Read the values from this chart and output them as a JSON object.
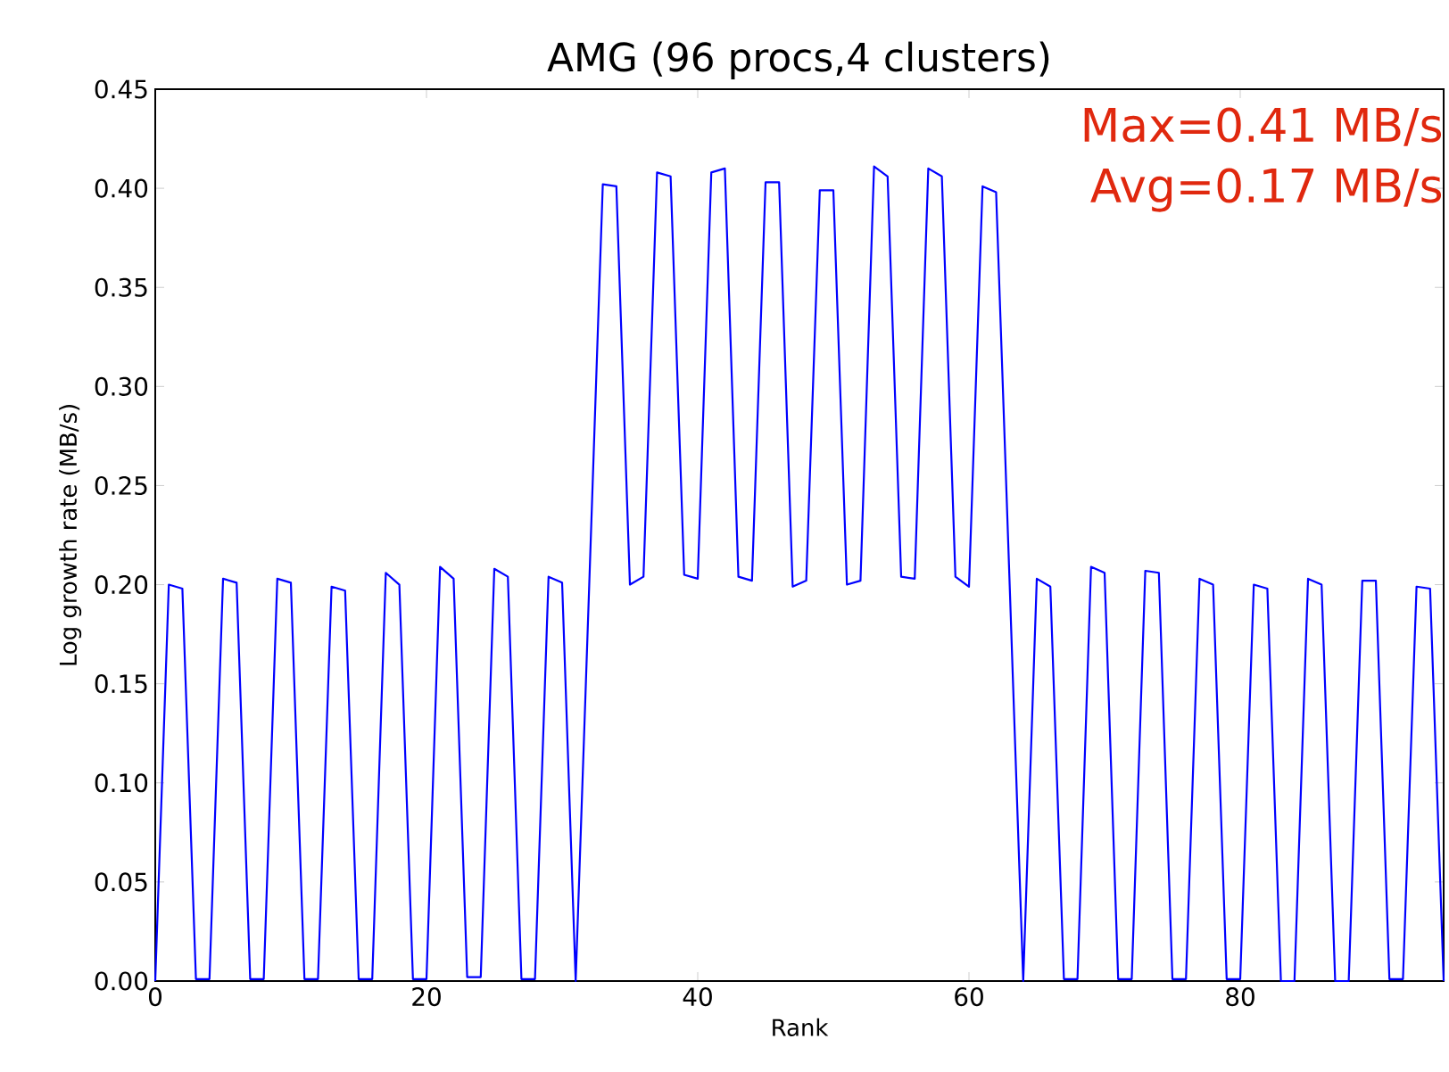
{
  "chart_data": {
    "type": "line",
    "title": "AMG (96 procs,4 clusters)",
    "xlabel": "Rank",
    "ylabel": "Log growth rate (MB/s)",
    "annotations": [
      "Max=0.41 MB/s",
      "Avg=0.17 MB/s"
    ],
    "x": [
      0,
      1,
      2,
      3,
      4,
      5,
      6,
      7,
      8,
      9,
      10,
      11,
      12,
      13,
      14,
      15,
      16,
      17,
      18,
      19,
      20,
      21,
      22,
      23,
      24,
      25,
      26,
      27,
      28,
      29,
      30,
      31,
      32,
      33,
      34,
      35,
      36,
      37,
      38,
      39,
      40,
      41,
      42,
      43,
      44,
      45,
      46,
      47,
      48,
      49,
      50,
      51,
      52,
      53,
      54,
      55,
      56,
      57,
      58,
      59,
      60,
      61,
      62,
      63,
      64,
      65,
      66,
      67,
      68,
      69,
      70,
      71,
      72,
      73,
      74,
      75,
      76,
      77,
      78,
      79,
      80,
      81,
      82,
      83,
      84,
      85,
      86,
      87,
      88,
      89,
      90,
      91,
      92,
      93,
      94,
      95
    ],
    "series": [
      {
        "color": "#0000ff",
        "values": [
          0,
          0.2,
          0.198,
          0.001,
          0.001,
          0.203,
          0.201,
          0.001,
          0.001,
          0.203,
          0.201,
          0.001,
          0.001,
          0.199,
          0.197,
          0.001,
          0.001,
          0.206,
          0.2,
          0.001,
          0.001,
          0.209,
          0.203,
          0.002,
          0.002,
          0.208,
          0.204,
          0.001,
          0.001,
          0.204,
          0.201,
          0,
          0.2,
          0.402,
          0.401,
          0.2,
          0.204,
          0.408,
          0.406,
          0.205,
          0.203,
          0.408,
          0.41,
          0.204,
          0.202,
          0.403,
          0.403,
          0.199,
          0.202,
          0.399,
          0.399,
          0.2,
          0.202,
          0.411,
          0.406,
          0.204,
          0.203,
          0.41,
          0.406,
          0.204,
          0.199,
          0.401,
          0.398,
          0.2,
          0,
          0.203,
          0.199,
          0.001,
          0.001,
          0.209,
          0.206,
          0.001,
          0.001,
          0.207,
          0.206,
          0.001,
          0.001,
          0.203,
          0.2,
          0.001,
          0.001,
          0.2,
          0.198,
          0,
          0,
          0.203,
          0.2,
          0,
          0,
          0.202,
          0.202,
          0.001,
          0.001,
          0.199,
          0.198,
          0
        ]
      }
    ],
    "xlim": [
      0,
      95
    ],
    "ylim": [
      0,
      0.45
    ],
    "xticks": [
      0,
      20,
      40,
      60,
      80
    ],
    "yticks": [
      {
        "value": 0,
        "label": "0.00"
      },
      {
        "value": 0.05,
        "label": "0.05"
      },
      {
        "value": 0.1,
        "label": "0.10"
      },
      {
        "value": 0.15,
        "label": "0.15"
      },
      {
        "value": 0.2,
        "label": "0.20"
      },
      {
        "value": 0.25,
        "label": "0.25"
      },
      {
        "value": 0.3,
        "label": "0.30"
      },
      {
        "value": 0.35,
        "label": "0.35"
      },
      {
        "value": 0.4,
        "label": "0.40"
      },
      {
        "value": 0.45,
        "label": "0.45"
      }
    ],
    "grid": false,
    "marker": "none",
    "line_style": "solid"
  }
}
